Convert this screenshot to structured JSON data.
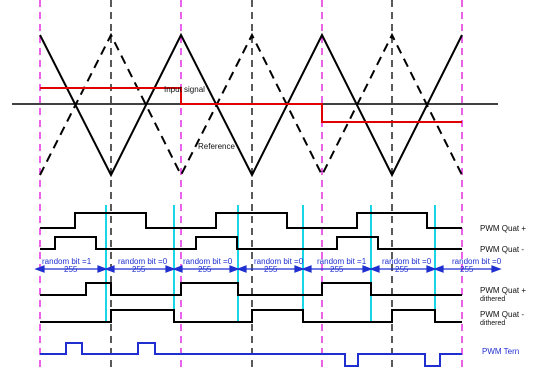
{
  "colors": {
    "background": "#ffffff",
    "axis": "#000000",
    "carrier": "#000000",
    "input": "#e00000",
    "guide_magenta": "#e020e0",
    "guide_black": "#000000",
    "cyan_marker": "#19d6e6",
    "blue_trace": "#1f2fd0"
  },
  "labels": {
    "input_signal": "Input signal",
    "reference": "Reference",
    "pwm_quat_plus": "PWM Quat +",
    "pwm_quat_minus": "PWM Quat -",
    "pwm_quat_plus_dithered_1": "PWM Quat +",
    "pwm_quat_plus_dithered_2": "dithered",
    "pwm_quat_minus_dithered_1": "PWM Quat -",
    "pwm_quat_minus_dithered_2": "dithered",
    "pwm_tern": "PWM Tern"
  },
  "random_bits": [
    {
      "label": "random bit =1",
      "interval": "255"
    },
    {
      "label": "random bit =0",
      "interval": "255"
    },
    {
      "label": "random bit =0",
      "interval": "255"
    },
    {
      "label": "random bit =0",
      "interval": "255"
    },
    {
      "label": "random bit =1",
      "interval": "255"
    },
    {
      "label": "random bit =0",
      "interval": "255"
    },
    {
      "label": "random bit =0",
      "interval": "255"
    }
  ]
}
